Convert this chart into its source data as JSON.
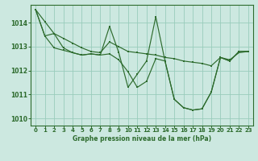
{
  "title": "Graphe pression niveau de la mer (hPa)",
  "bg_color": "#cce8e0",
  "grid_color": "#99ccbb",
  "line_color": "#2d6b2d",
  "x_ticks": [
    0,
    1,
    2,
    3,
    4,
    5,
    6,
    7,
    8,
    9,
    10,
    11,
    12,
    13,
    14,
    15,
    16,
    17,
    18,
    19,
    20,
    21,
    22,
    23
  ],
  "y_ticks": [
    1010,
    1011,
    1012,
    1013,
    1014
  ],
  "ylim": [
    1009.7,
    1014.75
  ],
  "xlim": [
    -0.5,
    23.5
  ],
  "series": [
    [
      1014.55,
      1014.05,
      1013.55,
      1013.35,
      1013.15,
      1012.95,
      1012.8,
      1012.75,
      1013.2,
      1013.0,
      1012.8,
      1012.75,
      1012.7,
      1012.65,
      1012.55,
      1012.5,
      1012.4,
      1012.35,
      1012.3,
      1012.2,
      1012.55,
      1012.45,
      1012.75,
      1012.8
    ],
    [
      1014.55,
      1013.45,
      1013.55,
      1012.95,
      1012.75,
      1012.65,
      1012.7,
      1012.65,
      1013.85,
      1012.75,
      1011.3,
      1011.85,
      1012.4,
      1014.25,
      1012.4,
      1010.8,
      1010.45,
      1010.35,
      1010.4,
      1011.1,
      1012.55,
      1012.4,
      1012.8,
      1012.8
    ],
    [
      1014.55,
      1013.45,
      1012.95,
      1012.85,
      1012.75,
      1012.65,
      1012.7,
      1012.65,
      1012.7,
      1012.45,
      1011.95,
      1011.3,
      1011.55,
      1012.5,
      1012.4,
      1010.8,
      1010.45,
      1010.35,
      1010.4,
      1011.1,
      1012.55,
      1012.4,
      1012.8,
      1012.8
    ]
  ]
}
